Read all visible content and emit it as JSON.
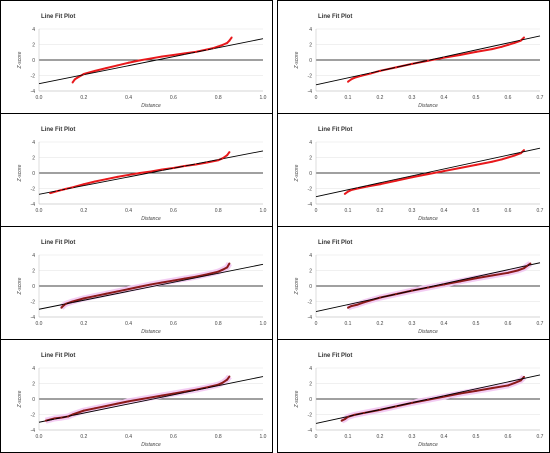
{
  "chart_data": [
    {
      "type": "scatter",
      "title": "Line Fit Plot",
      "xlabel": "Distance",
      "ylabel": "Z-score",
      "xlim": [
        0,
        1
      ],
      "ylim": [
        -4,
        4
      ],
      "xticks": [
        "0.0",
        "0.2",
        "0.4",
        "0.6",
        "0.8",
        "1.0"
      ],
      "yticks": [
        "-4",
        "-2",
        "0",
        "2",
        "4"
      ],
      "fit_line": {
        "x": [
          0,
          1
        ],
        "y": [
          -3.05,
          2.75
        ]
      },
      "point_color": "#e8191c",
      "x": [
        0.15,
        0.16,
        0.17,
        0.2,
        0.25,
        0.3,
        0.35,
        0.4,
        0.45,
        0.5,
        0.55,
        0.6,
        0.65,
        0.7,
        0.75,
        0.78,
        0.8,
        0.82,
        0.84,
        0.85,
        0.86
      ],
      "y": [
        -2.9,
        -2.5,
        -2.3,
        -1.8,
        -1.4,
        -1.05,
        -0.7,
        -0.35,
        -0.05,
        0.2,
        0.45,
        0.65,
        0.85,
        1.05,
        1.35,
        1.55,
        1.75,
        1.95,
        2.2,
        2.5,
        2.9
      ]
    },
    {
      "type": "scatter",
      "title": "Line Fit Plot",
      "xlabel": "Distance",
      "ylabel": "Z-score",
      "xlim": [
        0,
        0.7
      ],
      "ylim": [
        -4,
        4
      ],
      "xticks": [
        "0",
        "0.1",
        "0.2",
        "0.3",
        "0.4",
        "0.5",
        "0.6",
        "0.7"
      ],
      "yticks": [
        "-4",
        "-2",
        "0",
        "2",
        "4"
      ],
      "fit_line": {
        "x": [
          0,
          0.7
        ],
        "y": [
          -3.2,
          3.1
        ]
      },
      "point_color": "#e8191c",
      "x": [
        0.1,
        0.11,
        0.12,
        0.14,
        0.17,
        0.2,
        0.25,
        0.3,
        0.35,
        0.4,
        0.45,
        0.5,
        0.55,
        0.58,
        0.6,
        0.62,
        0.64,
        0.65
      ],
      "y": [
        -2.8,
        -2.5,
        -2.3,
        -2.05,
        -1.75,
        -1.4,
        -0.95,
        -0.5,
        -0.1,
        0.3,
        0.65,
        1.05,
        1.4,
        1.7,
        1.95,
        2.2,
        2.5,
        2.9
      ]
    },
    {
      "type": "scatter",
      "title": "Line Fit Plot",
      "xlabel": "Distance",
      "ylabel": "Z-score",
      "xlim": [
        0,
        1
      ],
      "ylim": [
        -4,
        4
      ],
      "xticks": [
        "0.0",
        "0.2",
        "0.4",
        "0.6",
        "0.8",
        "1.0"
      ],
      "yticks": [
        "-4",
        "-2",
        "0",
        "2",
        "4"
      ],
      "fit_line": {
        "x": [
          0,
          1
        ],
        "y": [
          -2.75,
          2.85
        ]
      },
      "point_color": "#e8191c",
      "x": [
        0.05,
        0.08,
        0.1,
        0.12,
        0.15,
        0.2,
        0.25,
        0.3,
        0.35,
        0.4,
        0.45,
        0.5,
        0.55,
        0.6,
        0.65,
        0.7,
        0.75,
        0.8,
        0.82,
        0.84,
        0.85
      ],
      "y": [
        -2.6,
        -2.35,
        -2.2,
        -2.05,
        -1.85,
        -1.45,
        -1.1,
        -0.8,
        -0.5,
        -0.25,
        0.0,
        0.2,
        0.45,
        0.65,
        0.9,
        1.1,
        1.35,
        1.65,
        1.9,
        2.3,
        2.7
      ]
    },
    {
      "type": "scatter",
      "title": "Line Fit Plot",
      "xlabel": "Distance",
      "ylabel": "Z-score",
      "xlim": [
        0,
        0.7
      ],
      "ylim": [
        -4,
        4
      ],
      "xticks": [
        "0",
        "0.1",
        "0.2",
        "0.3",
        "0.4",
        "0.5",
        "0.6",
        "0.7"
      ],
      "yticks": [
        "-4",
        "-2",
        "0",
        "2",
        "4"
      ],
      "fit_line": {
        "x": [
          0,
          0.7
        ],
        "y": [
          -3.05,
          3.2
        ]
      },
      "point_color": "#e8191c",
      "x": [
        0.09,
        0.1,
        0.11,
        0.13,
        0.16,
        0.2,
        0.25,
        0.3,
        0.35,
        0.4,
        0.45,
        0.5,
        0.55,
        0.58,
        0.6,
        0.62,
        0.64,
        0.65
      ],
      "y": [
        -2.7,
        -2.4,
        -2.2,
        -2.0,
        -1.75,
        -1.45,
        -1.0,
        -0.55,
        -0.15,
        0.25,
        0.65,
        1.05,
        1.45,
        1.75,
        2.0,
        2.25,
        2.55,
        2.95
      ]
    },
    {
      "type": "scatter",
      "title": "Line Fit Plot",
      "xlabel": "Distance",
      "ylabel": "Z-score",
      "xlim": [
        0,
        1
      ],
      "ylim": [
        -4,
        4
      ],
      "xticks": [
        "0.0",
        "0.2",
        "0.4",
        "0.6",
        "0.8",
        "1.0"
      ],
      "yticks": [
        "-4",
        "-2",
        "0",
        "2",
        "4"
      ],
      "fit_line": {
        "x": [
          0,
          1
        ],
        "y": [
          -3.0,
          2.8
        ]
      },
      "point_color": "#8b1a1a",
      "band_color": "#f2c6f2",
      "x": [
        0.1,
        0.11,
        0.12,
        0.15,
        0.2,
        0.25,
        0.3,
        0.35,
        0.4,
        0.45,
        0.5,
        0.55,
        0.6,
        0.65,
        0.7,
        0.75,
        0.8,
        0.82,
        0.84,
        0.85
      ],
      "y": [
        -2.8,
        -2.5,
        -2.3,
        -2.0,
        -1.6,
        -1.3,
        -1.0,
        -0.7,
        -0.4,
        -0.1,
        0.2,
        0.45,
        0.7,
        0.95,
        1.2,
        1.5,
        1.85,
        2.1,
        2.4,
        2.9
      ]
    },
    {
      "type": "scatter",
      "title": "Line Fit Plot",
      "xlabel": "Distance",
      "ylabel": "Z-score",
      "xlim": [
        0,
        0.7
      ],
      "ylim": [
        -4,
        4
      ],
      "xticks": [
        "0",
        "0.1",
        "0.2",
        "0.3",
        "0.4",
        "0.5",
        "0.6",
        "0.7"
      ],
      "yticks": [
        "-4",
        "-2",
        "0",
        "2",
        "4"
      ],
      "fit_line": {
        "x": [
          0,
          0.7
        ],
        "y": [
          -3.3,
          3.0
        ]
      },
      "point_color": "#8b1a1a",
      "band_color": "#f2c6f2",
      "x": [
        0.1,
        0.11,
        0.13,
        0.15,
        0.2,
        0.25,
        0.3,
        0.35,
        0.4,
        0.45,
        0.5,
        0.55,
        0.6,
        0.63,
        0.65,
        0.66,
        0.67
      ],
      "y": [
        -2.8,
        -2.6,
        -2.4,
        -2.1,
        -1.5,
        -1.05,
        -0.6,
        -0.2,
        0.2,
        0.6,
        1.0,
        1.35,
        1.7,
        2.0,
        2.3,
        2.6,
        2.9
      ]
    },
    {
      "type": "scatter",
      "title": "Line Fit Plot",
      "xlabel": "Distance",
      "ylabel": "Z-score",
      "xlim": [
        0,
        1
      ],
      "ylim": [
        -4,
        4
      ],
      "xticks": [
        "0.0",
        "0.2",
        "0.4",
        "0.6",
        "0.8",
        "1.0"
      ],
      "yticks": [
        "-4",
        "-2",
        "0",
        "2",
        "4"
      ],
      "fit_line": {
        "x": [
          0,
          1
        ],
        "y": [
          -3.0,
          2.9
        ]
      },
      "point_color": "#8b1a1a",
      "band_color": "#f2c6f2",
      "x": [
        0.03,
        0.07,
        0.1,
        0.13,
        0.15,
        0.2,
        0.25,
        0.3,
        0.35,
        0.4,
        0.45,
        0.5,
        0.55,
        0.6,
        0.65,
        0.7,
        0.75,
        0.8,
        0.82,
        0.84,
        0.85
      ],
      "y": [
        -2.8,
        -2.5,
        -2.4,
        -2.25,
        -2.0,
        -1.5,
        -1.2,
        -0.9,
        -0.6,
        -0.3,
        -0.05,
        0.2,
        0.45,
        0.7,
        0.95,
        1.2,
        1.5,
        1.85,
        2.1,
        2.5,
        2.9
      ]
    },
    {
      "type": "scatter",
      "title": "Line Fit Plot",
      "xlabel": "Distance",
      "ylabel": "Z-score",
      "xlim": [
        0,
        0.7
      ],
      "ylim": [
        -4,
        4
      ],
      "xticks": [
        "0",
        "0.1",
        "0.2",
        "0.3",
        "0.4",
        "0.5",
        "0.6",
        "0.7"
      ],
      "yticks": [
        "-4",
        "-2",
        "0",
        "2",
        "4"
      ],
      "fit_line": {
        "x": [
          0,
          0.7
        ],
        "y": [
          -3.15,
          3.1
        ]
      },
      "point_color": "#8b1a1a",
      "band_color": "#f2c6f2",
      "x": [
        0.08,
        0.09,
        0.1,
        0.12,
        0.15,
        0.2,
        0.25,
        0.3,
        0.35,
        0.4,
        0.45,
        0.5,
        0.55,
        0.6,
        0.62,
        0.64,
        0.65
      ],
      "y": [
        -2.8,
        -2.6,
        -2.3,
        -2.05,
        -1.8,
        -1.4,
        -0.95,
        -0.5,
        -0.1,
        0.3,
        0.7,
        1.05,
        1.4,
        1.75,
        2.05,
        2.4,
        2.85
      ]
    }
  ]
}
